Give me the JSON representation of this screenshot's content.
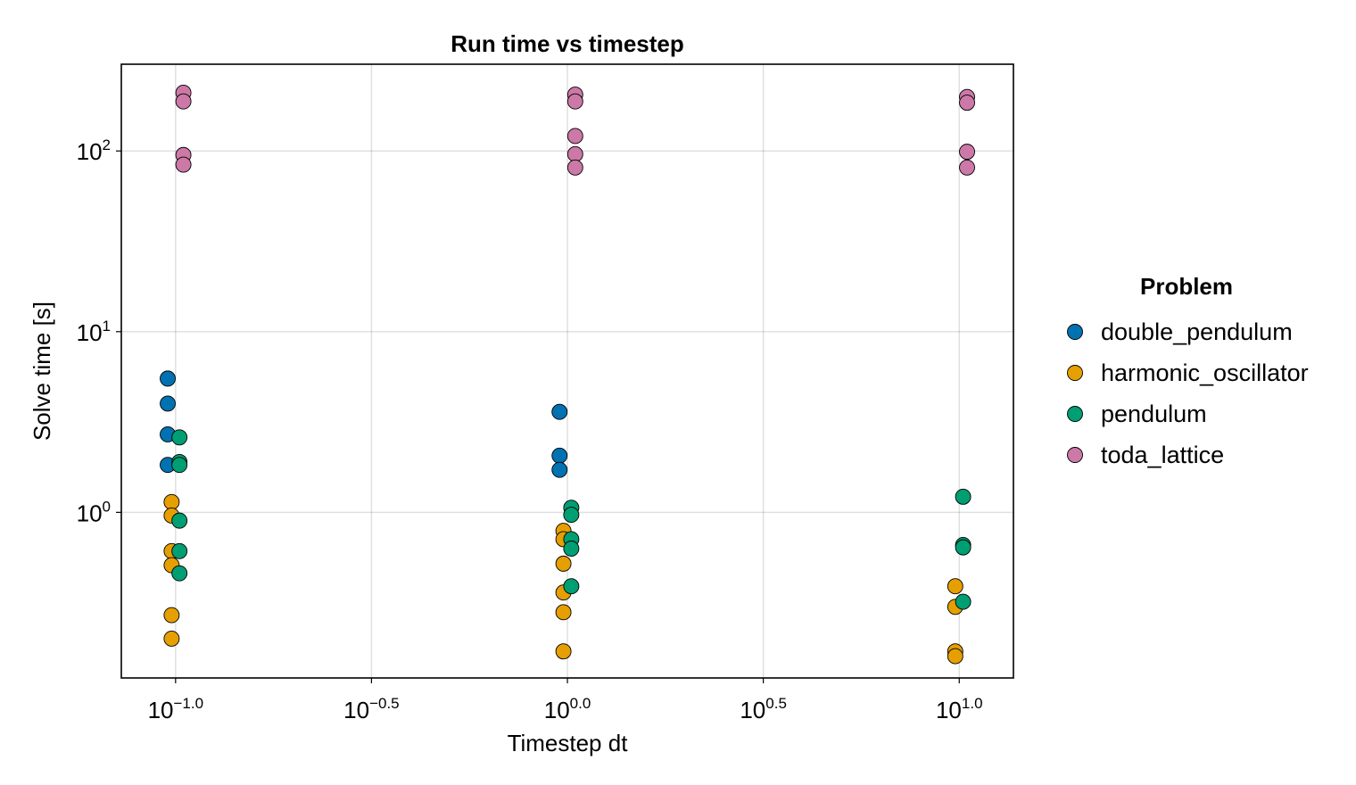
{
  "chart_data": {
    "type": "scatter",
    "title": "Run time vs timestep",
    "xlabel": "Timestep dt",
    "ylabel": "Solve time [s]",
    "xscale": "log10",
    "yscale": "log10",
    "xlim": [
      0.0727,
      13.75
    ],
    "ylim": [
      0.1212,
      302
    ],
    "x_ticks": [
      {
        "value": 0.1,
        "base": "10",
        "exp": "−1.0"
      },
      {
        "value": 0.3162,
        "base": "10",
        "exp": "−0.5"
      },
      {
        "value": 1.0,
        "base": "10",
        "exp": "0.0"
      },
      {
        "value": 3.162,
        "base": "10",
        "exp": "0.5"
      },
      {
        "value": 10.0,
        "base": "10",
        "exp": "1.0"
      }
    ],
    "y_ticks": [
      {
        "value": 1,
        "base": "10",
        "exp": "0"
      },
      {
        "value": 10,
        "base": "10",
        "exp": "1"
      },
      {
        "value": 100,
        "base": "10",
        "exp": "2"
      }
    ],
    "grid": true,
    "legend_position": "right",
    "legend_title": "Problem",
    "series": [
      {
        "name": "double_pendulum",
        "color": "#0072b2",
        "points": [
          {
            "x": 0.0955,
            "y": 5.5
          },
          {
            "x": 0.0955,
            "y": 4.0
          },
          {
            "x": 0.0955,
            "y": 2.7
          },
          {
            "x": 0.0955,
            "y": 1.83
          },
          {
            "x": 0.955,
            "y": 3.6
          },
          {
            "x": 0.955,
            "y": 2.06
          },
          {
            "x": 0.955,
            "y": 1.72
          }
        ]
      },
      {
        "name": "harmonic_oscillator",
        "color": "#e69f00",
        "points": [
          {
            "x": 0.0977,
            "y": 1.14
          },
          {
            "x": 0.0977,
            "y": 0.96
          },
          {
            "x": 0.0977,
            "y": 0.61
          },
          {
            "x": 0.0977,
            "y": 0.51
          },
          {
            "x": 0.0977,
            "y": 0.27
          },
          {
            "x": 0.0977,
            "y": 0.2
          },
          {
            "x": 0.977,
            "y": 0.79
          },
          {
            "x": 0.977,
            "y": 0.71
          },
          {
            "x": 0.977,
            "y": 0.52
          },
          {
            "x": 0.977,
            "y": 0.36
          },
          {
            "x": 0.977,
            "y": 0.28
          },
          {
            "x": 0.977,
            "y": 0.17
          },
          {
            "x": 9.77,
            "y": 0.39
          },
          {
            "x": 9.77,
            "y": 0.3
          },
          {
            "x": 9.77,
            "y": 0.17
          },
          {
            "x": 9.77,
            "y": 0.16
          }
        ]
      },
      {
        "name": "pendulum",
        "color": "#009e73",
        "points": [
          {
            "x": 0.1023,
            "y": 2.6
          },
          {
            "x": 0.1023,
            "y": 1.9
          },
          {
            "x": 0.1023,
            "y": 1.83
          },
          {
            "x": 0.1023,
            "y": 0.9
          },
          {
            "x": 0.1023,
            "y": 0.61
          },
          {
            "x": 0.1023,
            "y": 0.46
          },
          {
            "x": 1.023,
            "y": 1.06
          },
          {
            "x": 1.023,
            "y": 0.97
          },
          {
            "x": 1.023,
            "y": 0.71
          },
          {
            "x": 1.023,
            "y": 0.63
          },
          {
            "x": 1.023,
            "y": 0.39
          },
          {
            "x": 10.23,
            "y": 1.22
          },
          {
            "x": 10.23,
            "y": 0.66
          },
          {
            "x": 10.23,
            "y": 0.64
          },
          {
            "x": 10.23,
            "y": 0.32
          }
        ]
      },
      {
        "name": "toda_lattice",
        "color": "#cc79a7",
        "points": [
          {
            "x": 0.1047,
            "y": 210
          },
          {
            "x": 0.1047,
            "y": 188
          },
          {
            "x": 0.1047,
            "y": 95
          },
          {
            "x": 0.1047,
            "y": 84
          },
          {
            "x": 1.047,
            "y": 205
          },
          {
            "x": 1.047,
            "y": 188
          },
          {
            "x": 1.047,
            "y": 121
          },
          {
            "x": 1.047,
            "y": 96
          },
          {
            "x": 1.047,
            "y": 81
          },
          {
            "x": 10.47,
            "y": 199
          },
          {
            "x": 10.47,
            "y": 185
          },
          {
            "x": 10.47,
            "y": 99
          },
          {
            "x": 10.47,
            "y": 81
          }
        ]
      }
    ]
  }
}
